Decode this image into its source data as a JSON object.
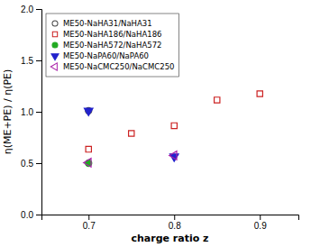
{
  "chart_data": {
    "type": "scatter",
    "xlabel": "charge ratio z",
    "ylabel": "η(ME+PE) / η(PE)",
    "xlim": [
      0.645,
      0.945
    ],
    "ylim": [
      0,
      2
    ],
    "xticks": [
      0.7,
      0.8,
      0.9
    ],
    "yticks": [
      {
        "value": 0,
        "label": "0.0"
      },
      0.5,
      {
        "value": 1.0,
        "label": "1.0"
      },
      1.5,
      {
        "value": 2.0,
        "label": "2.0"
      }
    ],
    "grid": false,
    "legend": "upper-left",
    "series": [
      {
        "name": "ME50-NaHA31/NaHA31",
        "color": "#444444",
        "marker": "circle-open",
        "x": [
          0.7
        ],
        "values": [
          1.01
        ]
      },
      {
        "name": "ME50-NaHA186/NaHA186",
        "color": "#cc2222",
        "marker": "square-open",
        "x": [
          0.7,
          0.75,
          0.8,
          0.85,
          0.9
        ],
        "values": [
          0.635,
          0.79,
          0.865,
          1.115,
          1.175
        ]
      },
      {
        "name": "ME50-NaHA572/NaHA572",
        "color": "#22aa22",
        "marker": "circle",
        "x": [
          0.7
        ],
        "values": [
          0.5
        ]
      },
      {
        "name": "ME50-NaPA60/NaPA60",
        "color": "#2222cc",
        "marker": "triangle-down",
        "x": [
          0.7,
          0.8
        ],
        "values": [
          1.01,
          0.565
        ]
      },
      {
        "name": "ME50-NaCMC250/NaCMC250",
        "color": "#aa22aa",
        "marker": "triangle-left-open",
        "x": [
          0.7,
          0.8
        ],
        "values": [
          0.505,
          0.575
        ]
      }
    ]
  }
}
